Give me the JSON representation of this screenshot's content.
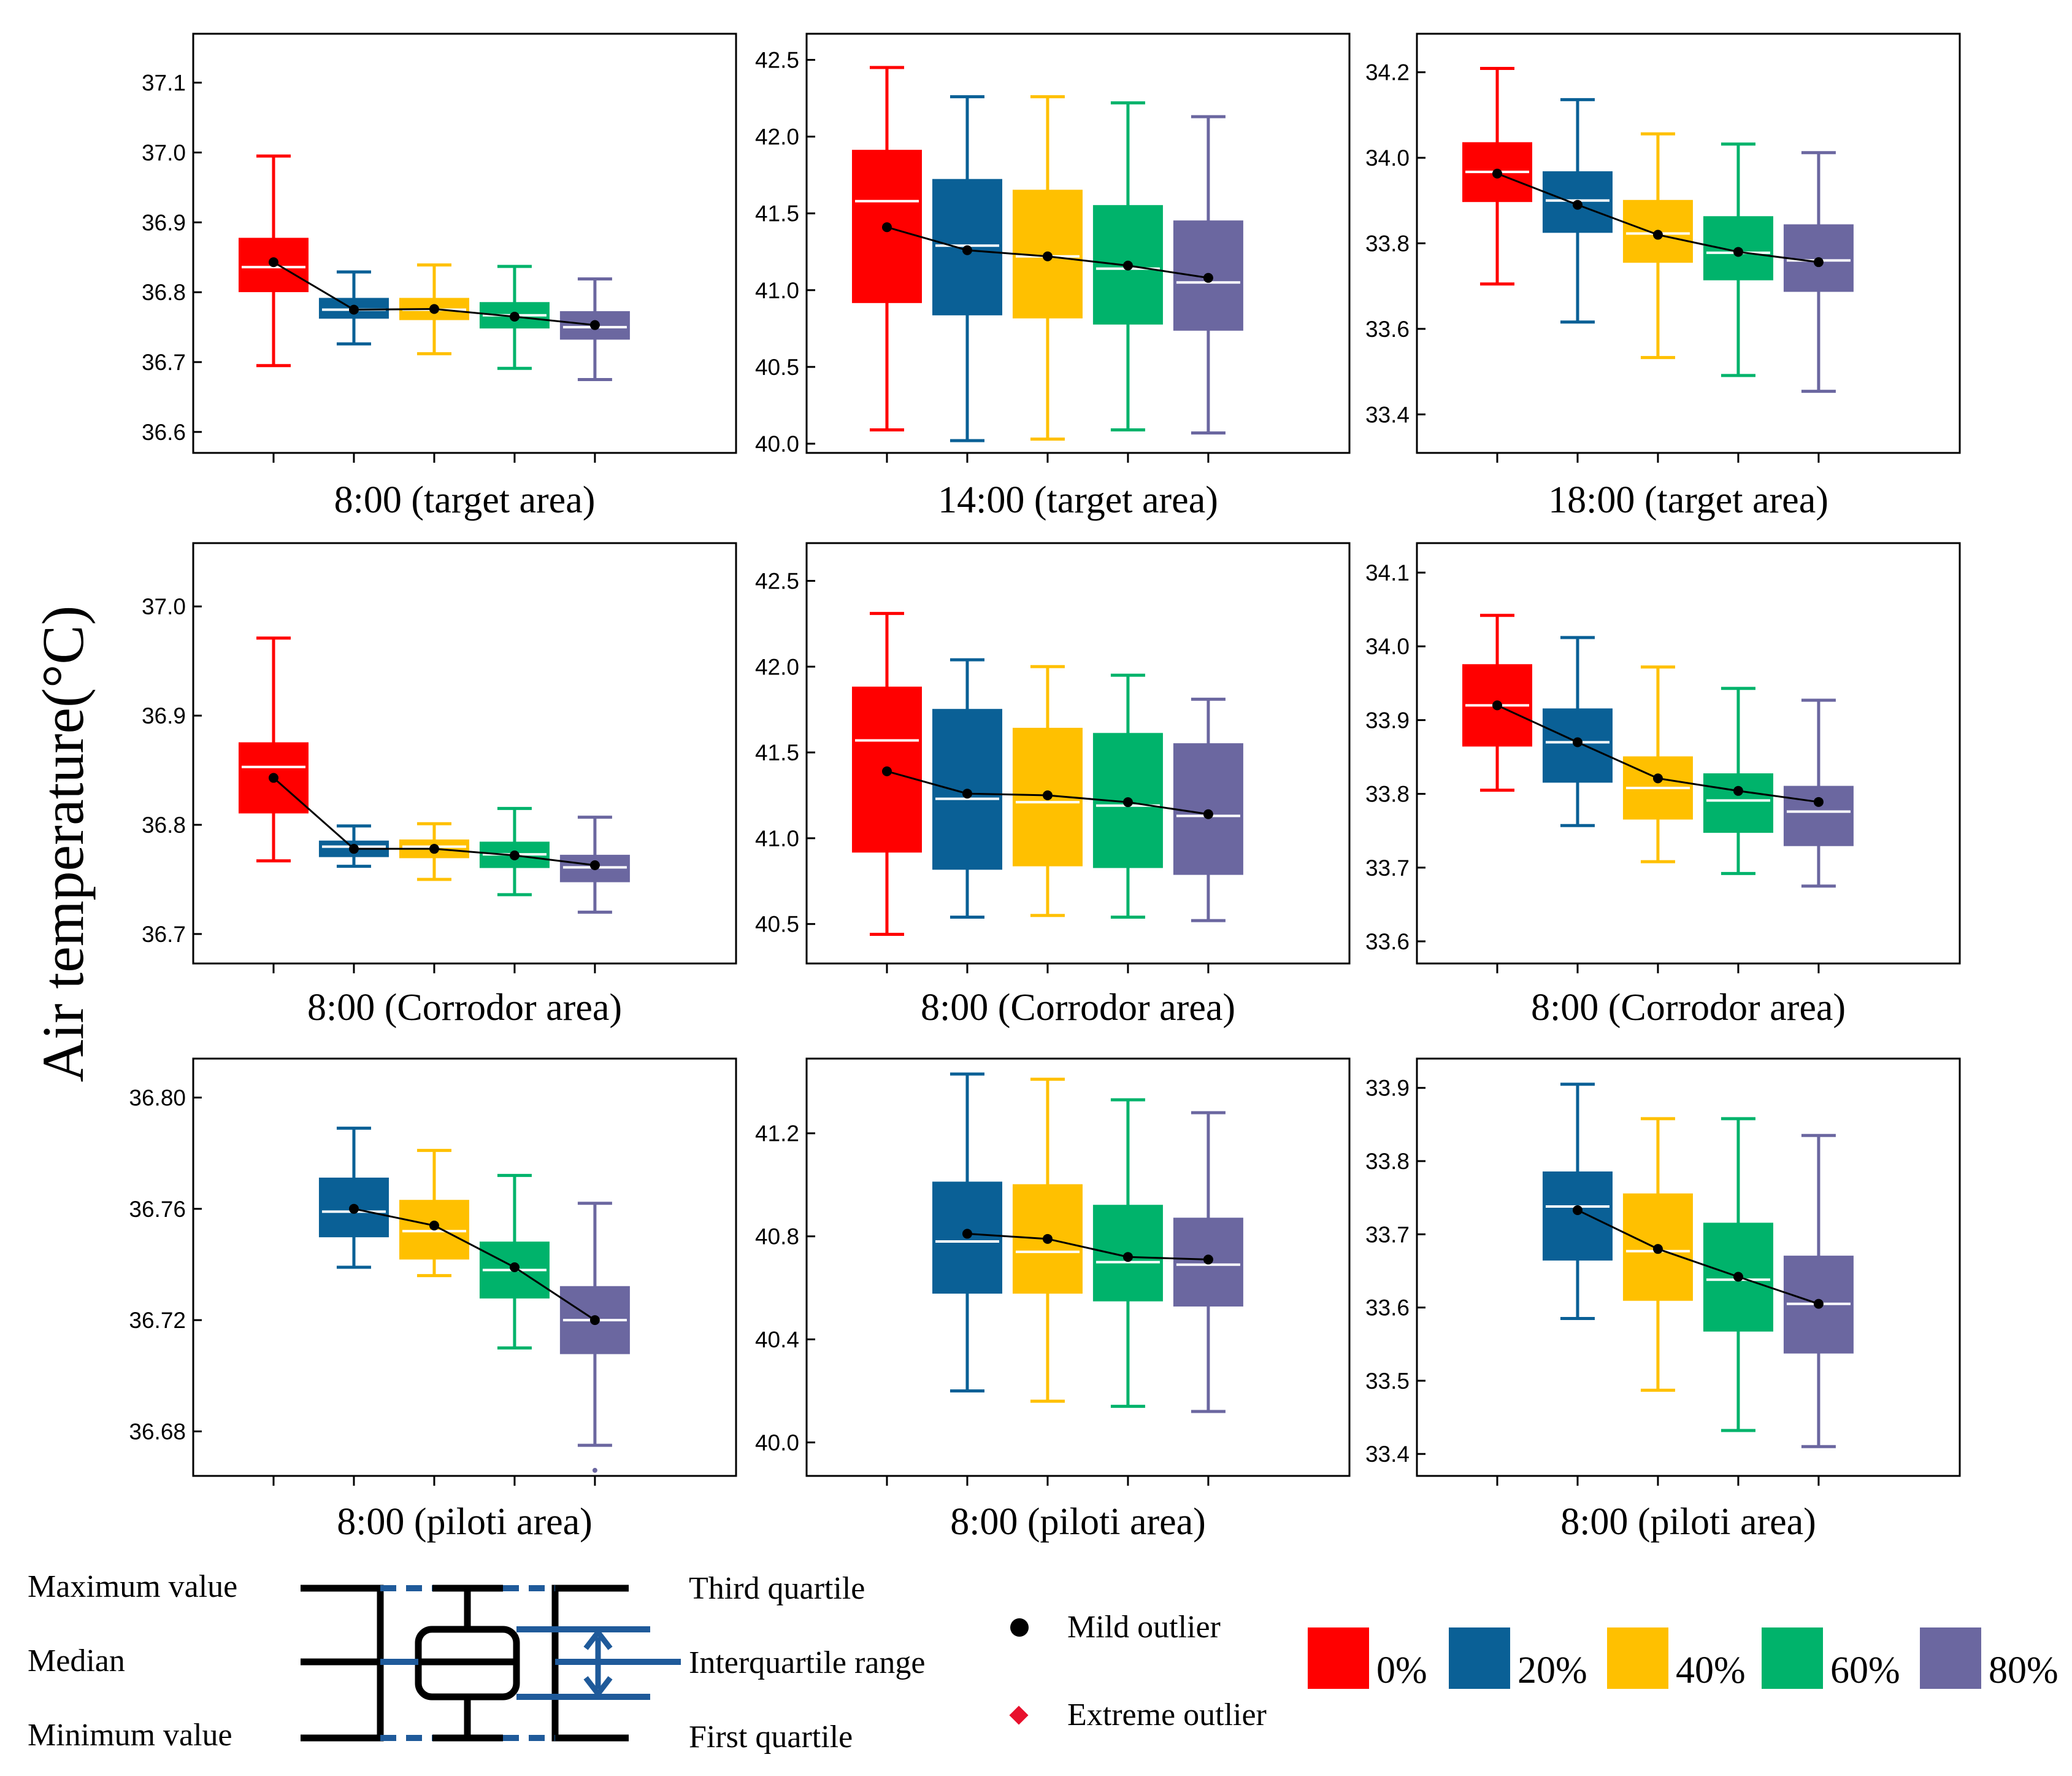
{
  "figure": {
    "y_axis_label": "Air temperature(°C)"
  },
  "chart_data": [
    {
      "type": "box",
      "title": "8:00 (target area)",
      "ylim": [
        36.57,
        37.17
      ],
      "yticks": [
        36.6,
        36.7,
        36.8,
        36.9,
        37.0,
        37.1
      ],
      "tick_decimals": 1,
      "series": [
        {
          "name": "0%",
          "color": "#ff0000",
          "min": 36.695,
          "q1": 36.801,
          "median": 36.836,
          "q3": 36.877,
          "max": 36.995,
          "mean": 36.843
        },
        {
          "name": "20%",
          "color": "#0a6096",
          "min": 36.726,
          "q1": 36.763,
          "median": 36.775,
          "q3": 36.791,
          "max": 36.829,
          "mean": 36.775
        },
        {
          "name": "40%",
          "color": "#ffc000",
          "min": 36.712,
          "q1": 36.761,
          "median": 36.775,
          "q3": 36.791,
          "max": 36.839,
          "mean": 36.776
        },
        {
          "name": "60%",
          "color": "#00b36b",
          "min": 36.691,
          "q1": 36.749,
          "median": 36.767,
          "q3": 36.785,
          "max": 36.837,
          "mean": 36.765
        },
        {
          "name": "80%",
          "color": "#6b67a0",
          "min": 36.675,
          "q1": 36.733,
          "median": 36.75,
          "q3": 36.772,
          "max": 36.819,
          "mean": 36.753
        }
      ]
    },
    {
      "type": "box",
      "title": "14:00 (target area)",
      "ylim": [
        39.94,
        42.67
      ],
      "yticks": [
        40.0,
        40.5,
        41.0,
        41.5,
        42.0,
        42.5
      ],
      "tick_decimals": 1,
      "series": [
        {
          "name": "0%",
          "color": "#ff0000",
          "min": 40.09,
          "q1": 40.92,
          "median": 41.58,
          "q3": 41.91,
          "max": 42.45,
          "mean": 41.41
        },
        {
          "name": "20%",
          "color": "#0a6096",
          "min": 40.02,
          "q1": 40.84,
          "median": 41.29,
          "q3": 41.72,
          "max": 42.26,
          "mean": 41.26
        },
        {
          "name": "40%",
          "color": "#ffc000",
          "min": 40.03,
          "q1": 40.82,
          "median": 41.22,
          "q3": 41.65,
          "max": 42.26,
          "mean": 41.22
        },
        {
          "name": "60%",
          "color": "#00b36b",
          "min": 40.09,
          "q1": 40.78,
          "median": 41.14,
          "q3": 41.55,
          "max": 42.22,
          "mean": 41.16
        },
        {
          "name": "80%",
          "color": "#6b67a0",
          "min": 40.07,
          "q1": 40.74,
          "median": 41.05,
          "q3": 41.45,
          "max": 42.13,
          "mean": 41.08
        }
      ]
    },
    {
      "type": "box",
      "title": "18:00 (target area)",
      "ylim": [
        33.31,
        34.29
      ],
      "yticks": [
        33.4,
        33.6,
        33.8,
        34.0,
        34.2
      ],
      "tick_decimals": 1,
      "series": [
        {
          "name": "0%",
          "color": "#ff0000",
          "min": 33.705,
          "q1": 33.898,
          "median": 33.967,
          "q3": 34.035,
          "max": 34.209,
          "mean": 33.963
        },
        {
          "name": "20%",
          "color": "#0a6096",
          "min": 33.616,
          "q1": 33.826,
          "median": 33.9,
          "q3": 33.967,
          "max": 34.136,
          "mean": 33.89
        },
        {
          "name": "40%",
          "color": "#ffc000",
          "min": 33.533,
          "q1": 33.756,
          "median": 33.823,
          "q3": 33.9,
          "max": 34.056,
          "mean": 33.82
        },
        {
          "name": "60%",
          "color": "#00b36b",
          "min": 33.491,
          "q1": 33.715,
          "median": 33.778,
          "q3": 33.862,
          "max": 34.032,
          "mean": 33.78
        },
        {
          "name": "80%",
          "color": "#6b67a0",
          "min": 33.454,
          "q1": 33.688,
          "median": 33.76,
          "q3": 33.843,
          "max": 34.012,
          "mean": 33.756
        }
      ]
    },
    {
      "type": "box",
      "title": "8:00 (Corrodor area)",
      "ylim": [
        36.673,
        37.058
      ],
      "yticks": [
        36.7,
        36.8,
        36.9,
        37.0
      ],
      "tick_decimals": 1,
      "series": [
        {
          "name": "0%",
          "color": "#ff0000",
          "min": 36.767,
          "q1": 36.811,
          "median": 36.853,
          "q3": 36.875,
          "max": 36.971,
          "mean": 36.843
        },
        {
          "name": "20%",
          "color": "#0a6096",
          "min": 36.762,
          "q1": 36.771,
          "median": 36.78,
          "q3": 36.785,
          "max": 36.799,
          "mean": 36.778
        },
        {
          "name": "40%",
          "color": "#ffc000",
          "min": 36.75,
          "q1": 36.77,
          "median": 36.78,
          "q3": 36.786,
          "max": 36.801,
          "mean": 36.778
        },
        {
          "name": "60%",
          "color": "#00b36b",
          "min": 36.736,
          "q1": 36.761,
          "median": 36.773,
          "q3": 36.784,
          "max": 36.815,
          "mean": 36.772
        },
        {
          "name": "80%",
          "color": "#6b67a0",
          "min": 36.72,
          "q1": 36.748,
          "median": 36.761,
          "q3": 36.772,
          "max": 36.807,
          "mean": 36.763
        }
      ]
    },
    {
      "type": "box",
      "title": "8:00 (Corrodor area)",
      "ylim": [
        40.27,
        42.72
      ],
      "yticks": [
        40.5,
        41.0,
        41.5,
        42.0,
        42.5
      ],
      "tick_decimals": 1,
      "series": [
        {
          "name": "0%",
          "color": "#ff0000",
          "min": 40.44,
          "q1": 40.92,
          "median": 41.57,
          "q3": 41.88,
          "max": 42.31,
          "mean": 41.39
        },
        {
          "name": "20%",
          "color": "#0a6096",
          "min": 40.54,
          "q1": 40.82,
          "median": 41.23,
          "q3": 41.75,
          "max": 42.04,
          "mean": 41.26
        },
        {
          "name": "40%",
          "color": "#ffc000",
          "min": 40.55,
          "q1": 40.84,
          "median": 41.21,
          "q3": 41.64,
          "max": 42.0,
          "mean": 41.25
        },
        {
          "name": "60%",
          "color": "#00b36b",
          "min": 40.54,
          "q1": 40.83,
          "median": 41.19,
          "q3": 41.61,
          "max": 41.95,
          "mean": 41.21
        },
        {
          "name": "80%",
          "color": "#6b67a0",
          "min": 40.52,
          "q1": 40.79,
          "median": 41.13,
          "q3": 41.55,
          "max": 41.81,
          "mean": 41.14
        }
      ]
    },
    {
      "type": "box",
      "title": "8:00 (Corrodor area)",
      "ylim": [
        33.57,
        34.14
      ],
      "yticks": [
        33.6,
        33.7,
        33.8,
        33.9,
        34.0,
        34.1
      ],
      "tick_decimals": 1,
      "series": [
        {
          "name": "0%",
          "color": "#ff0000",
          "min": 33.805,
          "q1": 33.865,
          "median": 33.92,
          "q3": 33.975,
          "max": 34.042,
          "mean": 33.92
        },
        {
          "name": "20%",
          "color": "#0a6096",
          "min": 33.757,
          "q1": 33.816,
          "median": 33.87,
          "q3": 33.915,
          "max": 34.012,
          "mean": 33.87
        },
        {
          "name": "40%",
          "color": "#ffc000",
          "min": 33.708,
          "q1": 33.766,
          "median": 33.808,
          "q3": 33.85,
          "max": 33.972,
          "mean": 33.821
        },
        {
          "name": "60%",
          "color": "#00b36b",
          "min": 33.692,
          "q1": 33.748,
          "median": 33.791,
          "q3": 33.827,
          "max": 33.943,
          "mean": 33.804
        },
        {
          "name": "80%",
          "color": "#6b67a0",
          "min": 33.675,
          "q1": 33.73,
          "median": 33.776,
          "q3": 33.81,
          "max": 33.927,
          "mean": 33.789
        }
      ]
    },
    {
      "type": "box",
      "title": "8:00 (piloti area)",
      "ylim": [
        36.664,
        36.814
      ],
      "yticks": [
        36.68,
        36.72,
        36.76,
        36.8
      ],
      "tick_decimals": 2,
      "series": [
        {
          "name": "0%",
          "color": "#ff0000",
          "empty": true
        },
        {
          "name": "20%",
          "color": "#0a6096",
          "min": 36.739,
          "q1": 36.75,
          "median": 36.759,
          "q3": 36.771,
          "max": 36.789,
          "mean": 36.76
        },
        {
          "name": "40%",
          "color": "#ffc000",
          "min": 36.736,
          "q1": 36.742,
          "median": 36.752,
          "q3": 36.763,
          "max": 36.781,
          "mean": 36.754
        },
        {
          "name": "60%",
          "color": "#00b36b",
          "min": 36.71,
          "q1": 36.728,
          "median": 36.738,
          "q3": 36.748,
          "max": 36.772,
          "mean": 36.739
        },
        {
          "name": "80%",
          "color": "#6b67a0",
          "min": 36.675,
          "q1": 36.708,
          "median": 36.72,
          "q3": 36.732,
          "max": 36.762,
          "mean": 36.72,
          "outliers": [
            36.666
          ]
        }
      ]
    },
    {
      "type": "box",
      "title": "8:00 (piloti area)",
      "ylim": [
        39.87,
        41.49
      ],
      "yticks": [
        40.0,
        40.4,
        40.8,
        41.2
      ],
      "tick_decimals": 1,
      "series": [
        {
          "name": "0%",
          "color": "#ff0000",
          "empty": true
        },
        {
          "name": "20%",
          "color": "#0a6096",
          "min": 40.2,
          "q1": 40.58,
          "median": 40.78,
          "q3": 41.01,
          "max": 41.43,
          "mean": 40.81
        },
        {
          "name": "40%",
          "color": "#ffc000",
          "min": 40.16,
          "q1": 40.58,
          "median": 40.74,
          "q3": 41.0,
          "max": 41.41,
          "mean": 40.79
        },
        {
          "name": "60%",
          "color": "#00b36b",
          "min": 40.14,
          "q1": 40.55,
          "median": 40.7,
          "q3": 40.92,
          "max": 41.33,
          "mean": 40.72
        },
        {
          "name": "80%",
          "color": "#6b67a0",
          "min": 40.12,
          "q1": 40.53,
          "median": 40.69,
          "q3": 40.87,
          "max": 41.28,
          "mean": 40.71
        }
      ]
    },
    {
      "type": "box",
      "title": "8:00 (piloti area)",
      "ylim": [
        33.37,
        33.94
      ],
      "yticks": [
        33.4,
        33.5,
        33.6,
        33.7,
        33.8,
        33.9
      ],
      "tick_decimals": 1,
      "series": [
        {
          "name": "0%",
          "color": "#ff0000",
          "empty": true
        },
        {
          "name": "20%",
          "color": "#0a6096",
          "min": 33.585,
          "q1": 33.665,
          "median": 33.738,
          "q3": 33.785,
          "max": 33.905,
          "mean": 33.733
        },
        {
          "name": "40%",
          "color": "#ffc000",
          "min": 33.487,
          "q1": 33.61,
          "median": 33.677,
          "q3": 33.755,
          "max": 33.858,
          "mean": 33.68
        },
        {
          "name": "60%",
          "color": "#00b36b",
          "min": 33.432,
          "q1": 33.568,
          "median": 33.638,
          "q3": 33.715,
          "max": 33.858,
          "mean": 33.642
        },
        {
          "name": "80%",
          "color": "#6b67a0",
          "min": 33.41,
          "q1": 33.538,
          "median": 33.605,
          "q3": 33.67,
          "max": 33.835,
          "mean": 33.605
        }
      ]
    }
  ],
  "legend": {
    "diagram": {
      "maximum": "Maximum value",
      "median": "Median",
      "minimum": "Minimum value",
      "third_quartile": "Third quartile",
      "iqr": "Interquartile range",
      "first_quartile": "First quartile",
      "line_color": "#1f5a9a"
    },
    "markers": {
      "mild": "Mild outlier",
      "extreme": "Extreme outlier",
      "extreme_color": "#e8112d"
    },
    "colors": [
      {
        "label": "0%",
        "color": "#ff0000"
      },
      {
        "label": "20%",
        "color": "#0a6096"
      },
      {
        "label": "40%",
        "color": "#ffc000"
      },
      {
        "label": "60%",
        "color": "#00b36b"
      },
      {
        "label": "80%",
        "color": "#6b67a0"
      }
    ]
  }
}
